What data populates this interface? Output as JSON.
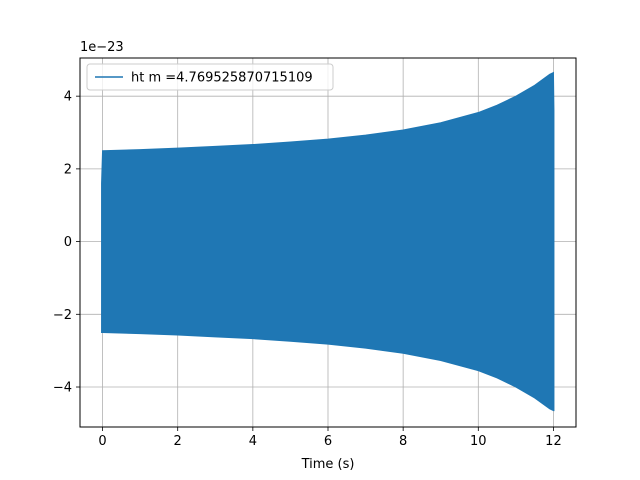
{
  "chart_data": {
    "type": "line",
    "title": "",
    "xlabel": "Time (s)",
    "ylabel": "",
    "y_scale_label": "1e−23",
    "xlim": [
      -0.6,
      12.6
    ],
    "ylim": [
      -5.1,
      5.05
    ],
    "xticks": [
      0,
      2,
      4,
      6,
      8,
      10,
      12
    ],
    "xtick_labels": [
      "0",
      "2",
      "4",
      "6",
      "8",
      "10",
      "12"
    ],
    "yticks": [
      -4,
      -2,
      0,
      2,
      4
    ],
    "ytick_labels": [
      "−4",
      "−2",
      "0",
      "2",
      "4"
    ],
    "grid": true,
    "legend_position": "top-left",
    "series": [
      {
        "name": "ht m =4.769525870715109",
        "color": "#1f77b4",
        "t_start": 0,
        "t_end": 12,
        "start_value": 1.6,
        "envelope": [
          [
            0.0,
            2.5
          ],
          [
            1.0,
            2.53
          ],
          [
            2.0,
            2.57
          ],
          [
            3.0,
            2.62
          ],
          [
            4.0,
            2.67
          ],
          [
            5.0,
            2.74
          ],
          [
            6.0,
            2.82
          ],
          [
            7.0,
            2.93
          ],
          [
            8.0,
            3.07
          ],
          [
            9.0,
            3.27
          ],
          [
            10.0,
            3.55
          ],
          [
            10.5,
            3.75
          ],
          [
            11.0,
            4.0
          ],
          [
            11.5,
            4.3
          ],
          [
            11.9,
            4.6
          ],
          [
            12.0,
            4.65
          ]
        ],
        "end_value": 3.6
      }
    ]
  }
}
